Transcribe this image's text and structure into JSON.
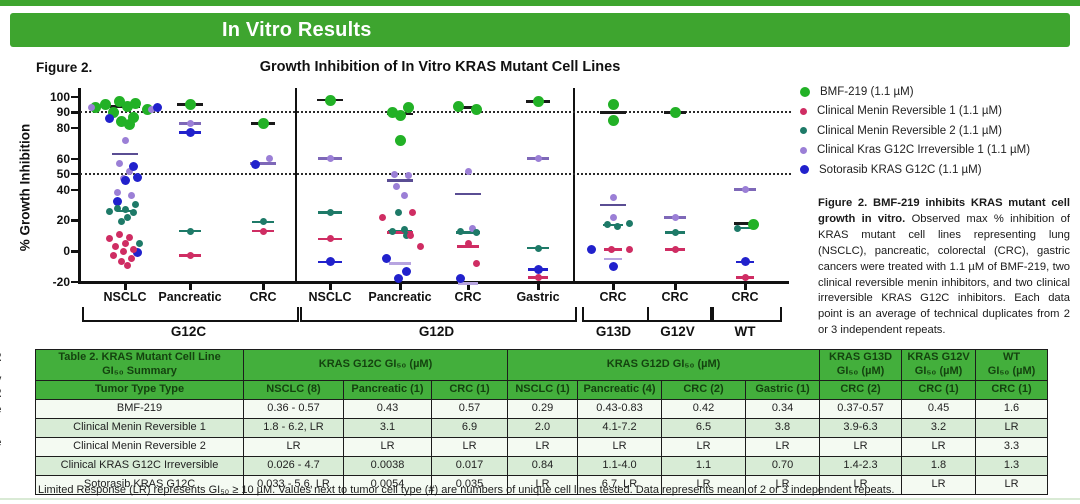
{
  "banner": {
    "title": "In Vitro Results",
    "color": "#3ea52f"
  },
  "figure": {
    "label": "Figure 2.",
    "caption_bold": "Figure 2. BMF-219 inhibits KRAS mutant cell growth in vitro.",
    "caption_text": " Observed max % inhibition of KRAS mutant cell lines representing lung (NSCLC), pancreatic, colorectal (CRC), gastric cancers were treated with 1.1 µM of BMF-219, two clinical reversible menin inhibitors, and two clinical irreversible KRAS G12C inhibitors. Each data point is an average of technical duplicates from 2 or 3 independent repeats."
  },
  "legend": {
    "items": [
      {
        "label": "BMF-219 (1.1 µM)",
        "color": "#22b126",
        "size": 10
      },
      {
        "label": "Clinical Menin Reversible 1 (1.1 µM)",
        "color": "#cf2d63",
        "size": 7
      },
      {
        "label": "Clinical Menin Reversible 2 (1.1 µM)",
        "color": "#1e7a68",
        "size": 7
      },
      {
        "label": "Clinical Kras G12C Irreversible 1 (1.1 µM)",
        "color": "#9b7fd6",
        "size": 7
      },
      {
        "label": "Sotorasib KRAS G12C (1.1 µM)",
        "color": "#2121cc",
        "size": 9
      }
    ]
  },
  "chart_data": {
    "type": "scatter",
    "title": "Growth Inhibition of In Vitro KRAS Mutant Cell Lines",
    "ylabel": "% Growth Inhibition",
    "ylim": [
      -20,
      100
    ],
    "yticks": [
      100,
      90,
      80,
      60,
      50,
      40,
      20,
      0,
      -20
    ],
    "reference_lines": [
      90,
      50
    ],
    "grid": "dotted-reference-only",
    "legend_position": "right",
    "groups": [
      {
        "tissue": "NSCLC",
        "mutation": "G12C"
      },
      {
        "tissue": "Pancreatic",
        "mutation": "G12C"
      },
      {
        "tissue": "CRC",
        "mutation": "G12C"
      },
      {
        "tissue": "NSCLC",
        "mutation": "G12D"
      },
      {
        "tissue": "Pancreatic",
        "mutation": "G12D"
      },
      {
        "tissue": "CRC",
        "mutation": "G12D"
      },
      {
        "tissue": "Gastric",
        "mutation": "G12D"
      },
      {
        "tissue": "CRC",
        "mutation": "G13D"
      },
      {
        "tissue": "CRC",
        "mutation": "G12V"
      },
      {
        "tissue": "CRC",
        "mutation": "WT"
      }
    ],
    "mutation_brackets": [
      {
        "label": "G12C",
        "from": 0,
        "to": 2
      },
      {
        "label": "G12D",
        "from": 3,
        "to": 6
      },
      {
        "label": "G13D",
        "from": 7,
        "to": 7
      },
      {
        "label": "G12V",
        "from": 8,
        "to": 8
      },
      {
        "label": "WT",
        "from": 9,
        "to": 9
      }
    ],
    "series": [
      {
        "name": "BMF-219 (1.1 µM)",
        "color": "#22b126"
      },
      {
        "name": "Clinical Menin Reversible 1 (1.1 µM)",
        "color": "#cf2d63"
      },
      {
        "name": "Clinical Menin Reversible 2 (1.1 µM)",
        "color": "#1e7a68"
      },
      {
        "name": "Clinical Kras G12C Irreversible 1 (1.1 µM)",
        "color": "#9b7fd6"
      },
      {
        "name": "Sotorasib KRAS G12C (1.1 µM)",
        "color": "#2121cc"
      }
    ],
    "points": [
      [
        0,
        0,
        97,
        -6
      ],
      [
        0,
        0,
        96,
        10
      ],
      [
        0,
        0,
        95,
        -20
      ],
      [
        0,
        0,
        94,
        2
      ],
      [
        0,
        0,
        93,
        -30
      ],
      [
        0,
        0,
        92,
        22
      ],
      [
        0,
        0,
        90,
        -12
      ],
      [
        0,
        0,
        87,
        8
      ],
      [
        0,
        0,
        84,
        -4
      ],
      [
        0,
        0,
        82,
        4
      ],
      [
        0,
        3,
        93,
        -34
      ],
      [
        0,
        3,
        92,
        26
      ],
      [
        0,
        3,
        72,
        0
      ],
      [
        0,
        3,
        57,
        -6
      ],
      [
        0,
        3,
        52,
        4
      ],
      [
        0,
        3,
        47,
        -2
      ],
      [
        0,
        3,
        38,
        -8
      ],
      [
        0,
        3,
        36,
        6
      ],
      [
        0,
        4,
        93,
        32
      ],
      [
        0,
        4,
        86,
        -16
      ],
      [
        0,
        4,
        55,
        8
      ],
      [
        0,
        4,
        48,
        12
      ],
      [
        0,
        4,
        46,
        0
      ],
      [
        0,
        4,
        32,
        -8
      ],
      [
        0,
        4,
        -1,
        12
      ],
      [
        0,
        2,
        30,
        10
      ],
      [
        0,
        2,
        28,
        -8
      ],
      [
        0,
        2,
        27,
        0
      ],
      [
        0,
        2,
        26,
        -16
      ],
      [
        0,
        2,
        25,
        8
      ],
      [
        0,
        2,
        22,
        2
      ],
      [
        0,
        2,
        19,
        -4
      ],
      [
        0,
        2,
        5,
        14
      ],
      [
        0,
        1,
        11,
        -6
      ],
      [
        0,
        1,
        9,
        4
      ],
      [
        0,
        1,
        8,
        -16
      ],
      [
        0,
        1,
        5,
        0
      ],
      [
        0,
        1,
        3,
        -10
      ],
      [
        0,
        1,
        1,
        8
      ],
      [
        0,
        1,
        0,
        -2
      ],
      [
        0,
        1,
        -3,
        -12
      ],
      [
        0,
        1,
        -5,
        6
      ],
      [
        0,
        1,
        -7,
        -4
      ],
      [
        0,
        1,
        -9,
        2
      ],
      [
        1,
        0,
        95,
        0
      ],
      [
        1,
        3,
        83,
        0
      ],
      [
        1,
        4,
        77,
        0
      ],
      [
        1,
        2,
        13,
        0
      ],
      [
        1,
        1,
        -3,
        0
      ],
      [
        2,
        0,
        83,
        0
      ],
      [
        2,
        3,
        60,
        6
      ],
      [
        2,
        4,
        56,
        -8
      ],
      [
        2,
        2,
        19,
        0
      ],
      [
        2,
        1,
        13,
        0
      ],
      [
        3,
        0,
        98,
        0
      ],
      [
        3,
        3,
        60,
        0
      ],
      [
        3,
        2,
        25,
        0
      ],
      [
        3,
        1,
        8,
        0
      ],
      [
        3,
        4,
        -7,
        0
      ],
      [
        4,
        0,
        93,
        8
      ],
      [
        4,
        0,
        90,
        -8
      ],
      [
        4,
        0,
        88,
        0
      ],
      [
        4,
        0,
        72,
        0
      ],
      [
        4,
        3,
        50,
        -6
      ],
      [
        4,
        3,
        49,
        8
      ],
      [
        4,
        3,
        42,
        -4
      ],
      [
        4,
        3,
        36,
        4
      ],
      [
        4,
        2,
        25,
        -2
      ],
      [
        4,
        2,
        14,
        4
      ],
      [
        4,
        2,
        13,
        -8
      ],
      [
        4,
        2,
        10,
        6
      ],
      [
        4,
        1,
        22,
        -18
      ],
      [
        4,
        1,
        25,
        12
      ],
      [
        4,
        1,
        10,
        10
      ],
      [
        4,
        1,
        3,
        20
      ],
      [
        4,
        4,
        -5,
        -14
      ],
      [
        4,
        4,
        -13,
        6
      ],
      [
        4,
        4,
        -18,
        -2
      ],
      [
        5,
        0,
        94,
        -10
      ],
      [
        5,
        0,
        92,
        8
      ],
      [
        5,
        3,
        52,
        0
      ],
      [
        5,
        3,
        15,
        4
      ],
      [
        5,
        2,
        13,
        -8
      ],
      [
        5,
        2,
        12,
        8
      ],
      [
        5,
        1,
        5,
        0
      ],
      [
        5,
        1,
        -8,
        8
      ],
      [
        5,
        4,
        -18,
        -8
      ],
      [
        6,
        0,
        97,
        0
      ],
      [
        6,
        3,
        60,
        0
      ],
      [
        6,
        2,
        2,
        0
      ],
      [
        6,
        4,
        -12,
        0
      ],
      [
        6,
        1,
        -17,
        0
      ],
      [
        7,
        0,
        95,
        0
      ],
      [
        7,
        0,
        85,
        0
      ],
      [
        7,
        3,
        35,
        0
      ],
      [
        7,
        3,
        22,
        0
      ],
      [
        7,
        2,
        17,
        -6
      ],
      [
        7,
        2,
        16,
        4
      ],
      [
        7,
        2,
        18,
        16
      ],
      [
        7,
        4,
        1,
        -22
      ],
      [
        7,
        4,
        -10,
        0
      ],
      [
        7,
        1,
        1,
        -2
      ],
      [
        7,
        1,
        1,
        16
      ],
      [
        8,
        0,
        90,
        0
      ],
      [
        8,
        3,
        22,
        0
      ],
      [
        8,
        2,
        12,
        0
      ],
      [
        8,
        1,
        1,
        0
      ],
      [
        9,
        3,
        40,
        0
      ],
      [
        9,
        0,
        17,
        8
      ],
      [
        9,
        2,
        15,
        -8
      ],
      [
        9,
        4,
        -7,
        0
      ],
      [
        9,
        1,
        -17,
        0
      ]
    ],
    "median_bars": [
      [
        0,
        94,
        30,
        "#1a1a1a"
      ],
      [
        0,
        63,
        26,
        "#5a4d93"
      ],
      [
        0,
        26,
        16,
        "#1e7a68"
      ],
      [
        1,
        95,
        26,
        "#1a1a1a"
      ],
      [
        1,
        83,
        22,
        "#7e68b8"
      ],
      [
        1,
        77,
        22,
        "#2121cc"
      ],
      [
        1,
        13,
        22,
        "#1e7a68"
      ],
      [
        1,
        -3,
        22,
        "#cf2d63"
      ],
      [
        2,
        83,
        24,
        "#1a1a1a"
      ],
      [
        2,
        57,
        26,
        "#7e68b8"
      ],
      [
        2,
        19,
        22,
        "#1e7a68"
      ],
      [
        2,
        13,
        22,
        "#cf2d63"
      ],
      [
        3,
        98,
        26,
        "#1a1a1a"
      ],
      [
        3,
        60,
        24,
        "#7e68b8"
      ],
      [
        3,
        25,
        24,
        "#1e7a68"
      ],
      [
        3,
        8,
        24,
        "#cf2d63"
      ],
      [
        3,
        -7,
        24,
        "#2121cc"
      ],
      [
        4,
        89,
        26,
        "#1a1a1a"
      ],
      [
        4,
        46,
        26,
        "#5a4d93"
      ],
      [
        4,
        13,
        24,
        "#1e7a68"
      ],
      [
        4,
        12,
        26,
        "#cf2d63"
      ],
      [
        4,
        -8,
        22,
        "#b7a4e0"
      ],
      [
        5,
        93,
        24,
        "#1a1a1a"
      ],
      [
        5,
        37,
        26,
        "#5a4d93"
      ],
      [
        5,
        12,
        24,
        "#1e7a68"
      ],
      [
        5,
        3,
        22,
        "#cf2d63"
      ],
      [
        5,
        -21,
        20,
        "#b7a4e0"
      ],
      [
        6,
        97,
        24,
        "#1a1a1a"
      ],
      [
        6,
        60,
        22,
        "#7e68b8"
      ],
      [
        6,
        2,
        22,
        "#1e7a68"
      ],
      [
        6,
        -12,
        20,
        "#2121cc"
      ],
      [
        6,
        -17,
        20,
        "#cf2d63"
      ],
      [
        7,
        90,
        26,
        "#1a1a1a"
      ],
      [
        7,
        30,
        26,
        "#5a4d93"
      ],
      [
        7,
        17,
        20,
        "#1e7a68"
      ],
      [
        7,
        1,
        18,
        "#cf2d63"
      ],
      [
        7,
        -5,
        18,
        "#b7a4e0"
      ],
      [
        8,
        90,
        22,
        "#1a1a1a"
      ],
      [
        8,
        22,
        22,
        "#7e68b8"
      ],
      [
        8,
        12,
        20,
        "#1e7a68"
      ],
      [
        8,
        1,
        20,
        "#cf2d63"
      ],
      [
        9,
        40,
        22,
        "#7e68b8"
      ],
      [
        9,
        18,
        22,
        "#1a1a1a"
      ],
      [
        9,
        15,
        20,
        "#1e7a68"
      ],
      [
        9,
        -7,
        18,
        "#2121cc"
      ],
      [
        9,
        -17,
        18,
        "#cf2d63"
      ]
    ]
  },
  "table": {
    "title": "Table 2. KRAS Mutant Cell Line\nGI₅₀ Summary",
    "group_headers": [
      {
        "label": "KRAS G12C  GI₅₀ (µM)",
        "colspan": 3
      },
      {
        "label": "KRAS G12D GI₅₀ (µM)",
        "colspan": 4
      },
      {
        "label": "KRAS G13D\nGI₅₀ (µM)",
        "colspan": 1
      },
      {
        "label": "KRAS G12V\nGI₅₀ (µM)",
        "colspan": 1
      },
      {
        "label": "WT\nGI₅₀ (µM)",
        "colspan": 1
      }
    ],
    "col_headers": [
      "Tumor Type Type",
      "NSCLC (8)",
      "Pancreatic (1)",
      "CRC (1)",
      "NSCLC (1)",
      "Pancreatic (4)",
      "CRC (2)",
      "Gastric (1)",
      "CRC (2)",
      "CRC (1)",
      "CRC (1)"
    ],
    "rows": [
      [
        "BMF-219",
        "0.36 - 0.57",
        "0.43",
        "0.57",
        "0.29",
        "0.43-0.83",
        "0.42",
        "0.34",
        "0.37-0.57",
        "0.45",
        "1.6"
      ],
      [
        "Clinical Menin Reversible 1",
        "1.8 - 6.2, LR",
        "3.1",
        "6.9",
        "2.0",
        "4.1-7.2",
        "6.5",
        "3.8",
        "3.9-6.3",
        "3.2",
        "LR"
      ],
      [
        "Clinical Menin Reversible 2",
        "LR",
        "LR",
        "LR",
        "LR",
        "LR",
        "LR",
        "LR",
        "LR",
        "LR",
        "3.3"
      ],
      [
        "Clinical KRAS G12C Irreversible",
        "0.026 - 4.7",
        "0.0038",
        "0.017",
        "0.84",
        "1.1-4.0",
        "1.1",
        "0.70",
        "1.4-2.3",
        "1.8",
        "1.3"
      ],
      [
        "Sotorasib KRAS G12C",
        "0.033 - 5.6, LR",
        "0.0054",
        "0.035",
        "LR",
        "6.7, LR",
        "LR",
        "LR",
        "LR",
        "LR",
        "LR"
      ]
    ],
    "header_bg": "#43af3c",
    "header_text_color": "#14430f",
    "row_bg_odd": "#f4faf2",
    "row_bg_even": "#d8ecd6"
  },
  "footnote": "Limited Response (LR) represents GI₅₀ ≥ 10 µM.  Values next to tumor cell type (#) are numbers of unique cell lines tested. Data represents mean of 2 or 3 independent repeats.",
  "edge_fragments": [
    "2",
    "y",
    "2",
    "e",
    ")",
    "e"
  ]
}
